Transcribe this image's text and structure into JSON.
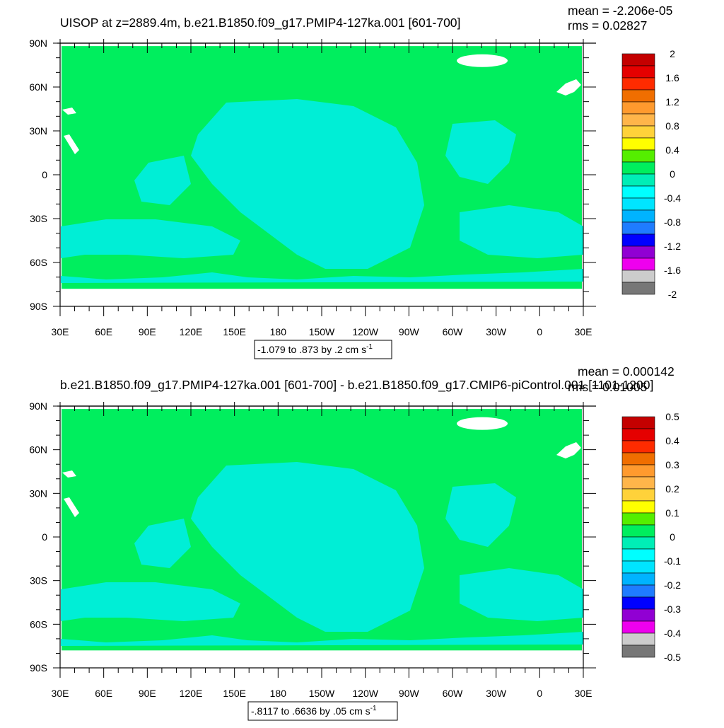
{
  "chart_data": [
    {
      "type": "heatmap",
      "title": "UISOP at z=2889.4m, b.e21.B1850.f09_g17.PMIP4-127ka.001 [601-700]",
      "stats": {
        "mean": "mean = -2.206e-05",
        "rms": "rms = 0.02827"
      },
      "range_note": "-1.079 to .873 by .2 cm s",
      "units_exponent": "-1",
      "xlim": [
        30,
        390
      ],
      "ylim": [
        -90,
        90
      ],
      "x_ticks": [
        "30E",
        "60E",
        "90E",
        "120E",
        "150E",
        "180",
        "150W",
        "120W",
        "90W",
        "60W",
        "30W",
        "0",
        "30E"
      ],
      "y_ticks": [
        "90N",
        "60N",
        "30N",
        "0",
        "30S",
        "60S",
        "90S"
      ],
      "colorbar_labels": [
        "2",
        "1.6",
        "1.2",
        "0.8",
        "0.4",
        "0",
        "-0.4",
        "-0.8",
        "-1.2",
        "-1.6",
        "-2"
      ],
      "dominant_field_level": "0 to 0.4",
      "secondary_field_level": "-0.4 to 0"
    },
    {
      "type": "heatmap",
      "title": "b.e21.B1850.f09_g17.PMIP4-127ka.001 [601-700] - b.e21.B1850.f09_g17.CMIP6-piControl.001 [1101-1200]",
      "stats": {
        "mean": "mean = 0.000142",
        "rms": "rms = 0.01005"
      },
      "range_note": "-.8117 to .6636 by .05 cm s",
      "units_exponent": "-1",
      "xlim": [
        30,
        390
      ],
      "ylim": [
        -90,
        90
      ],
      "x_ticks": [
        "30E",
        "60E",
        "90E",
        "120E",
        "150E",
        "180",
        "150W",
        "120W",
        "90W",
        "60W",
        "30W",
        "0",
        "30E"
      ],
      "y_ticks": [
        "90N",
        "60N",
        "30N",
        "0",
        "30S",
        "60S",
        "90S"
      ],
      "colorbar_labels": [
        "0.5",
        "0.4",
        "0.3",
        "0.2",
        "0.1",
        "0",
        "-0.1",
        "-0.2",
        "-0.3",
        "-0.4",
        "-0.5"
      ],
      "dominant_field_level": "0 to 0.1",
      "secondary_field_level": "-0.1 to 0"
    }
  ],
  "colors": {
    "colorbar": [
      "#c40000",
      "#e50000",
      "#ff2b00",
      "#f06e00",
      "#ff9a2e",
      "#ffb54a",
      "#ffd23a",
      "#ffff00",
      "#55ee00",
      "#00ee5e",
      "#00eeb6",
      "#00ffff",
      "#00e5ff",
      "#00b3ff",
      "#1f7cff",
      "#0000ff",
      "#9100d3",
      "#ee00ee",
      "#cccccc",
      "#777777"
    ],
    "field_main": "#00ee5e",
    "field_negative": "#00eed6",
    "no_data": "#ffffff"
  }
}
